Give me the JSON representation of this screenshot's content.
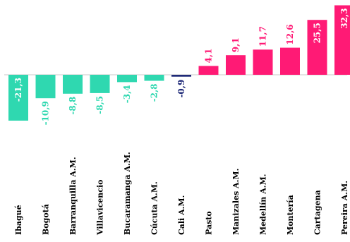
{
  "chart_data": {
    "type": "bar",
    "categories": [
      "Ibagué",
      "Bogotá",
      "Barranquilla A.M.",
      "Villavicencio",
      "Bucaramanga A.M.",
      "Cúcuta A.M.",
      "Cali A.M.",
      "Pasto",
      "Manizales A.M.",
      "Medellín A.M.",
      "Montería",
      "Cartagena",
      "Pereira A.M."
    ],
    "values": [
      -21.3,
      -10.9,
      -8.8,
      -8.5,
      -3.4,
      -2.8,
      -0.9,
      4.1,
      9.1,
      11.7,
      12.6,
      25.5,
      32.3
    ],
    "labels": [
      "-21,3",
      "-10,9",
      "-8,8",
      "-8,5",
      "-3,4",
      "-2,8",
      "-0,9",
      "4,1",
      "9,1",
      "11,7",
      "12,6",
      "25,5",
      "32,3"
    ],
    "colors": [
      "#2fd8b0",
      "#2fd8b0",
      "#2fd8b0",
      "#2fd8b0",
      "#2fd8b0",
      "#2fd8b0",
      "#1f2a78",
      "#ff1a75",
      "#ff1a75",
      "#ff1a75",
      "#ff1a75",
      "#ff1a75",
      "#ff1a75"
    ],
    "title": "",
    "xlabel": "",
    "ylabel": "",
    "ylim": [
      -25,
      35
    ],
    "grid": false,
    "legend": "none"
  }
}
